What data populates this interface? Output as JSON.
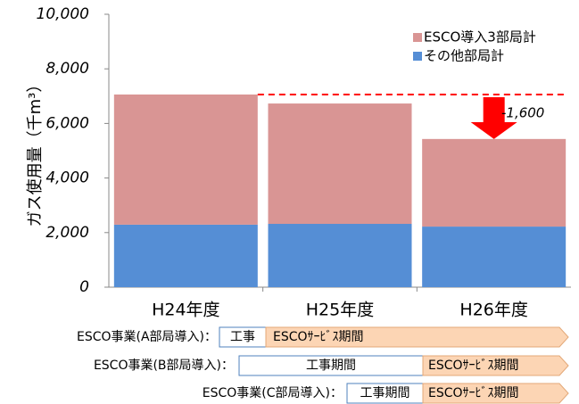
{
  "chart_data": {
    "type": "stacked-bar",
    "ylabel": "ガス使用量（千m³）",
    "categories": [
      "H24年度",
      "H25年度",
      "H26年度"
    ],
    "series": [
      {
        "name": "その他部局計",
        "color": "#558ed5",
        "values": [
          2290,
          2320,
          2220
        ]
      },
      {
        "name": "ESCO導入3部局計",
        "color": "#d99594",
        "values": [
          4770,
          4410,
          3210
        ]
      }
    ],
    "ylim": [
      0,
      10000
    ],
    "yticks": [
      0,
      {
        "value": 2000,
        "label": "2,000"
      },
      {
        "value": 4000,
        "label": "4,000"
      },
      {
        "value": 6000,
        "label": "6,000"
      },
      {
        "value": 8000,
        "label": "8,000"
      },
      {
        "value": 10000,
        "label": "10,000"
      }
    ],
    "annotation": "-1,600",
    "annotation_color": "#ff0000"
  },
  "timeline": [
    {
      "label": "ESCO事業(A部局導入)：",
      "segments": [
        "工事",
        "ESCOｻｰﾋﾞｽ期間"
      ]
    },
    {
      "label": "ESCO事業(B部局導入)：",
      "segments": [
        "工事期間",
        "ESCOｻｰﾋﾞｽ期間"
      ]
    },
    {
      "label": "ESCO事業(C部局導入)：",
      "segments": [
        "工事期間",
        "ESCOｻｰﾋﾞｽ期間"
      ]
    }
  ]
}
